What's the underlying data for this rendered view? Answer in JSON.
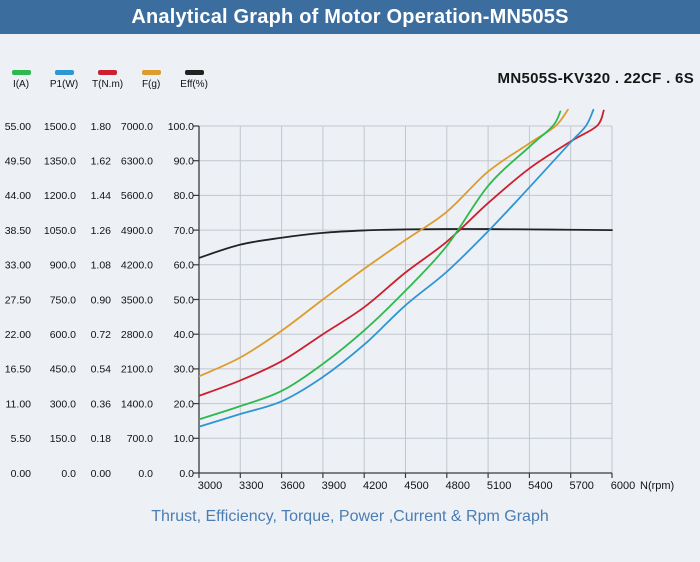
{
  "header": {
    "title": "Analytical Graph of Motor Operation-MN505S"
  },
  "model_label": "MN505S-KV320 . 22CF . 6S",
  "caption": "Thrust, Efficiency, Torque, Power ,Current & Rpm Graph",
  "colors": {
    "header_bar": "#3c6d9f",
    "background": "#edf1f6",
    "grid": "#c2c7cd",
    "axis": "#3a3a3a",
    "caption_text": "#4b7db3",
    "current_green": "#2db94d",
    "power_blue": "#2d96d3",
    "torque_red": "#cc2030",
    "thrust_orange": "#dd9c2e",
    "eff_black": "#222222"
  },
  "legend": {
    "items": [
      {
        "label": "I(A)",
        "color": "#2db94d"
      },
      {
        "label": "P1(W)",
        "color": "#2d96d3"
      },
      {
        "label": "T(N.m)",
        "color": "#cc2030"
      },
      {
        "label": "F(g)",
        "color": "#dd9c2e"
      },
      {
        "label": "Eff(%)",
        "color": "#222222"
      }
    ]
  },
  "chart_data": {
    "type": "line",
    "grid": true,
    "legend_position": "top-left",
    "x_axis": {
      "label": "N(rpm)",
      "min": 3000,
      "max": 6000,
      "ticks": [
        "3000",
        "3300",
        "3600",
        "3900",
        "4200",
        "4500",
        "4800",
        "5100",
        "5400",
        "5700",
        "6000"
      ]
    },
    "y_axes": [
      {
        "name": "I(A)",
        "max": 55,
        "ticks": [
          "55.00",
          "49.50",
          "44.00",
          "38.50",
          "33.00",
          "27.50",
          "22.00",
          "16.50",
          "11.00",
          "5.50",
          "0.00"
        ]
      },
      {
        "name": "P1(W)",
        "max": 1500,
        "ticks": [
          "1500.0",
          "1350.0",
          "1200.0",
          "1050.0",
          "900.0",
          "750.0",
          "600.0",
          "450.0",
          "300.0",
          "150.0",
          "0.0"
        ]
      },
      {
        "name": "T(N.m)",
        "max": 1.8,
        "ticks": [
          "1.80",
          "1.62",
          "1.44",
          "1.26",
          "1.08",
          "0.90",
          "0.72",
          "0.54",
          "0.36",
          "0.18",
          "0.00"
        ]
      },
      {
        "name": "F(g)",
        "max": 7000,
        "ticks": [
          "7000.0",
          "6300.0",
          "5600.0",
          "4900.0",
          "4200.0",
          "3500.0",
          "2800.0",
          "2100.0",
          "1400.0",
          "700.0",
          "0.0"
        ]
      },
      {
        "name": "Eff(%)",
        "max": 100,
        "ticks": [
          "100.0",
          "90.0",
          "80.0",
          "70.0",
          "60.0",
          "50.0",
          "40.0",
          "30.0",
          "20.0",
          "10.0",
          "0.0"
        ]
      }
    ],
    "series": [
      {
        "name": "I(A)",
        "unit": "A",
        "axis_max": 55,
        "color": "#2db94d",
        "points": [
          [
            3000,
            8.5
          ],
          [
            3300,
            10.6
          ],
          [
            3600,
            13.0
          ],
          [
            3900,
            17.3
          ],
          [
            4200,
            22.6
          ],
          [
            4500,
            28.9
          ],
          [
            4800,
            36.0
          ],
          [
            5100,
            45.5
          ],
          [
            5400,
            51.7
          ],
          [
            5570,
            55.0
          ],
          [
            5625,
            57.3
          ]
        ]
      },
      {
        "name": "P1(W)",
        "unit": "W",
        "axis_max": 1500,
        "color": "#2d96d3",
        "points": [
          [
            3000,
            200
          ],
          [
            3300,
            255
          ],
          [
            3600,
            310
          ],
          [
            3900,
            415
          ],
          [
            4200,
            555
          ],
          [
            4500,
            725
          ],
          [
            4800,
            870
          ],
          [
            5100,
            1045
          ],
          [
            5400,
            1235
          ],
          [
            5700,
            1430
          ],
          [
            5810,
            1500
          ],
          [
            5865,
            1570
          ]
        ]
      },
      {
        "name": "T(N.m)",
        "unit": "N.m",
        "axis_max": 1.8,
        "color": "#cc2030",
        "points": [
          [
            3000,
            0.4
          ],
          [
            3300,
            0.48
          ],
          [
            3600,
            0.58
          ],
          [
            3900,
            0.72
          ],
          [
            4200,
            0.86
          ],
          [
            4500,
            1.04
          ],
          [
            4800,
            1.2
          ],
          [
            5100,
            1.4
          ],
          [
            5400,
            1.58
          ],
          [
            5700,
            1.72
          ],
          [
            5890,
            1.8
          ],
          [
            5940,
            1.88
          ]
        ]
      },
      {
        "name": "F(g)",
        "unit": "g",
        "axis_max": 7000,
        "color": "#dd9c2e",
        "points": [
          [
            3000,
            1950
          ],
          [
            3300,
            2330
          ],
          [
            3600,
            2870
          ],
          [
            3900,
            3500
          ],
          [
            4200,
            4120
          ],
          [
            4500,
            4700
          ],
          [
            4800,
            5270
          ],
          [
            5100,
            6080
          ],
          [
            5400,
            6650
          ],
          [
            5590,
            7000
          ],
          [
            5680,
            7330
          ]
        ]
      },
      {
        "name": "Eff(%)",
        "unit": "%",
        "axis_max": 100,
        "color": "#222222",
        "points": [
          [
            3000,
            62.0
          ],
          [
            3300,
            65.8
          ],
          [
            3600,
            67.8
          ],
          [
            3900,
            69.2
          ],
          [
            4200,
            69.9
          ],
          [
            4500,
            70.2
          ],
          [
            4800,
            70.3
          ],
          [
            5100,
            70.3
          ],
          [
            5400,
            70.2
          ],
          [
            5700,
            70.1
          ],
          [
            6000,
            70.0
          ]
        ]
      }
    ]
  }
}
